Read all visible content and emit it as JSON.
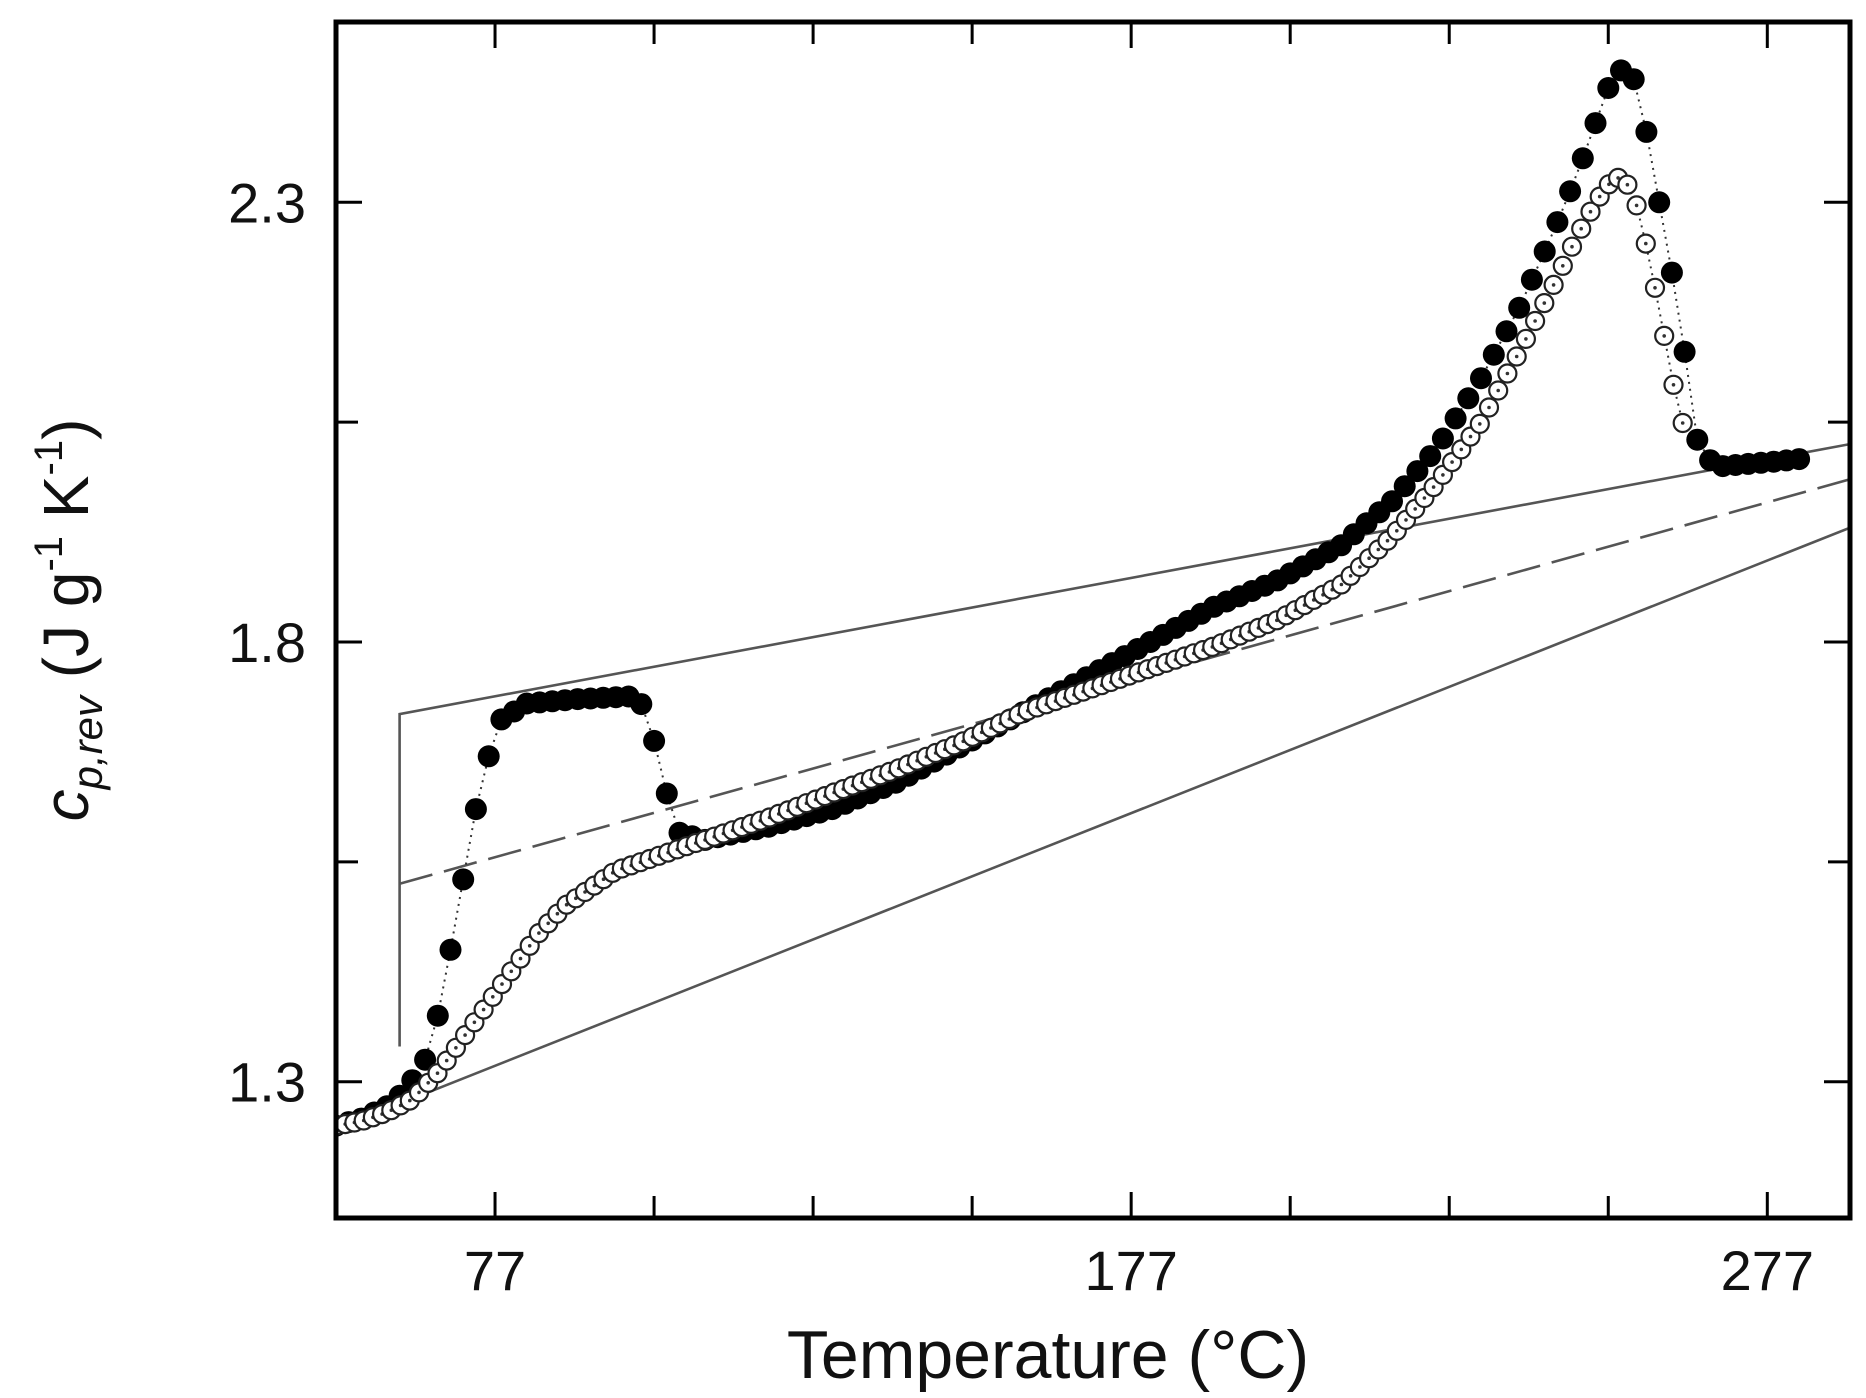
{
  "chart_data": {
    "type": "scatter",
    "title": "",
    "xlabel": "Temperature (°C)",
    "ylabel": {
      "symbol": "c",
      "subscript": "p,rev",
      "units_open": " (J g",
      "units_exp1": "-1",
      "units_mid": " K",
      "units_exp2": "-1",
      "units_close": ")"
    },
    "xlim": [
      52,
      290
    ],
    "ylim": [
      1.145,
      2.505
    ],
    "xticks": [
      77,
      177,
      277
    ],
    "xticks_minor": [
      102,
      127,
      152,
      202,
      227,
      252
    ],
    "yticks": [
      1.3,
      1.8,
      2.3
    ],
    "yticks_minor": [
      1.55,
      2.05
    ],
    "grid": false,
    "series": [
      {
        "name": "filled circles",
        "marker": "filled",
        "connect": "dotted",
        "anchors": [
          [
            52,
            1.25
          ],
          [
            56,
            1.258
          ],
          [
            60,
            1.272
          ],
          [
            63,
            1.29
          ],
          [
            66,
            1.325
          ],
          [
            68,
            1.375
          ],
          [
            70,
            1.45
          ],
          [
            72,
            1.53
          ],
          [
            74,
            1.61
          ],
          [
            76,
            1.67
          ],
          [
            78,
            1.712
          ],
          [
            82,
            1.73
          ],
          [
            90,
            1.735
          ],
          [
            98,
            1.738
          ],
          [
            101,
            1.725
          ],
          [
            103,
            1.65
          ],
          [
            106,
            1.583
          ],
          [
            110,
            1.575
          ],
          [
            120,
            1.59
          ],
          [
            130,
            1.61
          ],
          [
            140,
            1.64
          ],
          [
            150,
            1.68
          ],
          [
            160,
            1.72
          ],
          [
            170,
            1.76
          ],
          [
            180,
            1.8
          ],
          [
            190,
            1.84
          ],
          [
            200,
            1.87
          ],
          [
            210,
            1.91
          ],
          [
            218,
            1.96
          ],
          [
            225,
            2.02
          ],
          [
            232,
            2.1
          ],
          [
            238,
            2.18
          ],
          [
            243,
            2.26
          ],
          [
            247,
            2.33
          ],
          [
            250,
            2.39
          ],
          [
            252,
            2.43
          ],
          [
            254,
            2.45
          ],
          [
            255,
            2.46
          ],
          [
            256,
            2.44
          ],
          [
            258,
            2.38
          ],
          [
            260,
            2.3
          ],
          [
            262,
            2.22
          ],
          [
            264,
            2.13
          ],
          [
            265,
            2.07
          ],
          [
            266,
            2.03
          ],
          [
            267,
            2.01
          ],
          [
            270,
            2.0
          ],
          [
            278,
            2.005
          ],
          [
            282,
            2.008
          ]
        ],
        "spacing": 2.0
      },
      {
        "name": "open circles",
        "marker": "open",
        "connect": "dotted",
        "anchors": [
          [
            52,
            1.25
          ],
          [
            56,
            1.255
          ],
          [
            60,
            1.265
          ],
          [
            64,
            1.28
          ],
          [
            68,
            1.31
          ],
          [
            72,
            1.35
          ],
          [
            76,
            1.39
          ],
          [
            80,
            1.43
          ],
          [
            84,
            1.47
          ],
          [
            88,
            1.5
          ],
          [
            92,
            1.52
          ],
          [
            96,
            1.54
          ],
          [
            102,
            1.555
          ],
          [
            110,
            1.575
          ],
          [
            120,
            1.6
          ],
          [
            130,
            1.628
          ],
          [
            140,
            1.655
          ],
          [
            150,
            1.685
          ],
          [
            160,
            1.72
          ],
          [
            170,
            1.745
          ],
          [
            180,
            1.77
          ],
          [
            190,
            1.795
          ],
          [
            200,
            1.825
          ],
          [
            210,
            1.865
          ],
          [
            218,
            1.92
          ],
          [
            225,
            1.98
          ],
          [
            232,
            2.05
          ],
          [
            238,
            2.13
          ],
          [
            243,
            2.2
          ],
          [
            247,
            2.26
          ],
          [
            250,
            2.3
          ],
          [
            252,
            2.32
          ],
          [
            254,
            2.33
          ],
          [
            256,
            2.31
          ],
          [
            258,
            2.25
          ],
          [
            260,
            2.18
          ],
          [
            262,
            2.1
          ],
          [
            264,
            2.04
          ]
        ],
        "spacing": 1.45
      }
    ],
    "lines": [
      {
        "name": "solid upper baseline",
        "style": "solid",
        "points": [
          [
            62,
            1.718
          ],
          [
            62,
            1.34
          ],
          [
            62,
            1.718
          ],
          [
            290,
            2.025
          ]
        ]
      },
      {
        "name": "dashed baseline",
        "style": "dashed",
        "points": [
          [
            62,
            1.525
          ],
          [
            290,
            1.985
          ]
        ]
      },
      {
        "name": "solid lower baseline",
        "style": "solid",
        "points": [
          [
            62,
            1.275
          ],
          [
            290,
            1.93
          ]
        ]
      }
    ]
  }
}
